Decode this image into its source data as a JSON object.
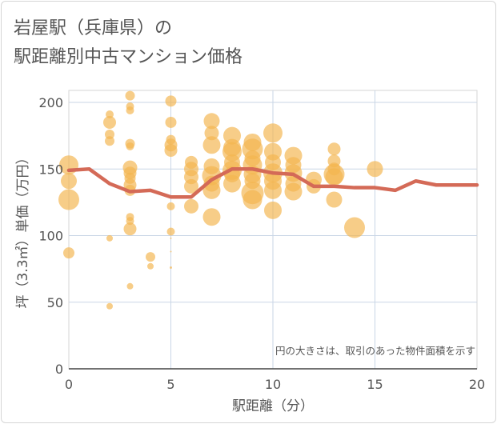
{
  "chart_data": {
    "type": "scatter",
    "title_lines": [
      "岩屋駅（兵庫県）の",
      "駅距離別中古マンション価格"
    ],
    "xlabel": "駅距離（分）",
    "ylabel": "坪（3.3㎡）単価（万円）",
    "xlim": [
      0,
      20
    ],
    "ylim": [
      0,
      200
    ],
    "x_ticks": [
      0,
      5,
      10,
      15,
      20
    ],
    "y_ticks": [
      0,
      50,
      100,
      150,
      200
    ],
    "x_tick_labels": [
      "0",
      "5",
      "10",
      "15",
      "20"
    ],
    "y_tick_labels": [
      "0",
      "50",
      "100",
      "150",
      "200"
    ],
    "grid": true,
    "annotation": "円の大きさは、取引のあった物件面積を示す",
    "bubble_color": "#f3b54f",
    "line_color": "#d46a57",
    "bubbles": [
      {
        "x": 0,
        "y": 153,
        "s": 12
      },
      {
        "x": 0,
        "y": 141,
        "s": 10
      },
      {
        "x": 0,
        "y": 127,
        "s": 13
      },
      {
        "x": 0,
        "y": 87,
        "s": 7
      },
      {
        "x": 2,
        "y": 191,
        "s": 5
      },
      {
        "x": 2,
        "y": 185,
        "s": 8
      },
      {
        "x": 2,
        "y": 176,
        "s": 6
      },
      {
        "x": 2,
        "y": 171,
        "s": 6
      },
      {
        "x": 2,
        "y": 98,
        "s": 4
      },
      {
        "x": 2,
        "y": 47,
        "s": 4
      },
      {
        "x": 3,
        "y": 205,
        "s": 6
      },
      {
        "x": 3,
        "y": 197,
        "s": 5
      },
      {
        "x": 3,
        "y": 194,
        "s": 5
      },
      {
        "x": 3,
        "y": 169,
        "s": 6
      },
      {
        "x": 3,
        "y": 167,
        "s": 5
      },
      {
        "x": 3,
        "y": 151,
        "s": 9
      },
      {
        "x": 3,
        "y": 147,
        "s": 8
      },
      {
        "x": 3,
        "y": 143,
        "s": 7
      },
      {
        "x": 3,
        "y": 138,
        "s": 8
      },
      {
        "x": 3,
        "y": 134,
        "s": 7
      },
      {
        "x": 3,
        "y": 114,
        "s": 5
      },
      {
        "x": 3,
        "y": 111,
        "s": 5
      },
      {
        "x": 3,
        "y": 105,
        "s": 8
      },
      {
        "x": 3,
        "y": 62,
        "s": 4
      },
      {
        "x": 4,
        "y": 84,
        "s": 6
      },
      {
        "x": 4,
        "y": 77,
        "s": 4
      },
      {
        "x": 5,
        "y": 201,
        "s": 7
      },
      {
        "x": 5,
        "y": 185,
        "s": 7
      },
      {
        "x": 5,
        "y": 172,
        "s": 6
      },
      {
        "x": 5,
        "y": 168,
        "s": 8
      },
      {
        "x": 5,
        "y": 164,
        "s": 8
      },
      {
        "x": 5,
        "y": 122,
        "s": 5
      },
      {
        "x": 5,
        "y": 103,
        "s": 5
      },
      {
        "x": 5,
        "y": 98,
        "s": 1
      },
      {
        "x": 5,
        "y": 88,
        "s": 1
      },
      {
        "x": 5,
        "y": 76,
        "s": 1.5
      },
      {
        "x": 6,
        "y": 155,
        "s": 8
      },
      {
        "x": 6,
        "y": 150,
        "s": 9
      },
      {
        "x": 6,
        "y": 144,
        "s": 9
      },
      {
        "x": 6,
        "y": 137,
        "s": 9
      },
      {
        "x": 6,
        "y": 122,
        "s": 9
      },
      {
        "x": 7,
        "y": 186,
        "s": 10
      },
      {
        "x": 7,
        "y": 177,
        "s": 9
      },
      {
        "x": 7,
        "y": 168,
        "s": 11
      },
      {
        "x": 7,
        "y": 152,
        "s": 10
      },
      {
        "x": 7,
        "y": 145,
        "s": 12
      },
      {
        "x": 7,
        "y": 139,
        "s": 10
      },
      {
        "x": 7,
        "y": 134,
        "s": 11
      },
      {
        "x": 7,
        "y": 114,
        "s": 11
      },
      {
        "x": 8,
        "y": 175,
        "s": 11
      },
      {
        "x": 8,
        "y": 166,
        "s": 11
      },
      {
        "x": 8,
        "y": 163,
        "s": 12
      },
      {
        "x": 8,
        "y": 155,
        "s": 10
      },
      {
        "x": 8,
        "y": 149,
        "s": 12
      },
      {
        "x": 8,
        "y": 146,
        "s": 10
      },
      {
        "x": 8,
        "y": 139,
        "s": 11
      },
      {
        "x": 9,
        "y": 170,
        "s": 11
      },
      {
        "x": 9,
        "y": 165,
        "s": 13
      },
      {
        "x": 9,
        "y": 158,
        "s": 10
      },
      {
        "x": 9,
        "y": 153,
        "s": 12
      },
      {
        "x": 9,
        "y": 146,
        "s": 11
      },
      {
        "x": 9,
        "y": 141,
        "s": 10
      },
      {
        "x": 9,
        "y": 132,
        "s": 14
      },
      {
        "x": 9,
        "y": 127,
        "s": 12
      },
      {
        "x": 10,
        "y": 177,
        "s": 12
      },
      {
        "x": 10,
        "y": 163,
        "s": 11
      },
      {
        "x": 10,
        "y": 155,
        "s": 10
      },
      {
        "x": 10,
        "y": 147,
        "s": 12
      },
      {
        "x": 10,
        "y": 141,
        "s": 11
      },
      {
        "x": 10,
        "y": 134,
        "s": 11
      },
      {
        "x": 10,
        "y": 119,
        "s": 11
      },
      {
        "x": 11,
        "y": 160,
        "s": 11
      },
      {
        "x": 11,
        "y": 153,
        "s": 10
      },
      {
        "x": 11,
        "y": 147,
        "s": 11
      },
      {
        "x": 11,
        "y": 139,
        "s": 10
      },
      {
        "x": 11,
        "y": 133,
        "s": 11
      },
      {
        "x": 12,
        "y": 142,
        "s": 10
      },
      {
        "x": 12,
        "y": 137,
        "s": 9
      },
      {
        "x": 13,
        "y": 165,
        "s": 8
      },
      {
        "x": 13,
        "y": 156,
        "s": 8
      },
      {
        "x": 13,
        "y": 150,
        "s": 8
      },
      {
        "x": 13,
        "y": 146,
        "s": 13
      },
      {
        "x": 13,
        "y": 144,
        "s": 11
      },
      {
        "x": 13,
        "y": 127,
        "s": 10
      },
      {
        "x": 14,
        "y": 106,
        "s": 13
      },
      {
        "x": 15,
        "y": 150,
        "s": 10
      }
    ],
    "series": [
      {
        "type": "line",
        "x": [
          0,
          1,
          2,
          3,
          4,
          5,
          6,
          7,
          8,
          9,
          10,
          11,
          12,
          13,
          14,
          15,
          16,
          17,
          18,
          19,
          20
        ],
        "values": [
          149,
          150,
          139,
          133,
          134,
          129,
          129,
          142,
          150,
          150,
          147,
          146,
          137,
          137,
          136,
          136,
          134,
          141,
          138,
          138,
          138
        ]
      }
    ]
  }
}
